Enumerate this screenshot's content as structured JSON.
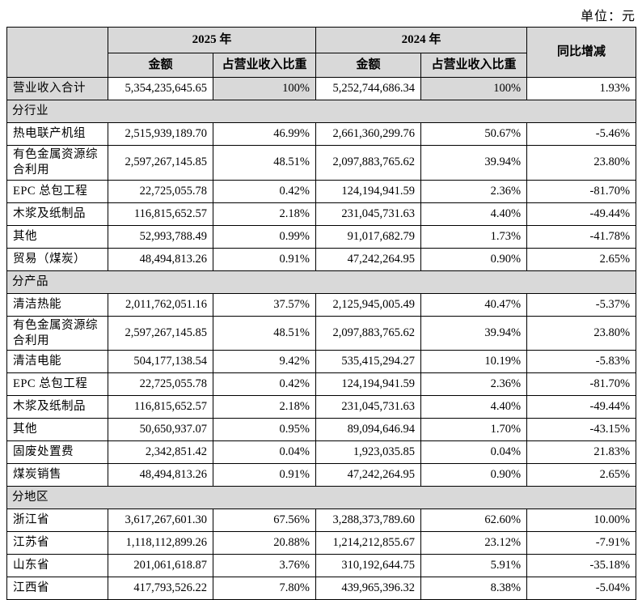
{
  "unit_label": "单位：元",
  "colors": {
    "header_bg": "#d9d9d9",
    "border": "#000000"
  },
  "table": {
    "header": {
      "year_2025": "2025 年",
      "year_2024": "2024 年",
      "yoy": "同比增减",
      "amount": "金额",
      "pct_of_revenue": "占营业收入比重"
    },
    "rows": [
      {
        "type": "total",
        "label": "营业收入合计",
        "a2025": "5,354,235,645.65",
        "p2025": "100%",
        "a2024": "5,252,744,686.34",
        "p2024": "100%",
        "yoy": "1.93%"
      },
      {
        "type": "section",
        "label": "分行业"
      },
      {
        "type": "data",
        "label": "热电联产机组",
        "a2025": "2,515,939,189.70",
        "p2025": "46.99%",
        "a2024": "2,661,360,299.76",
        "p2024": "50.67%",
        "yoy": "-5.46%"
      },
      {
        "type": "data",
        "label": "有色金属资源综合利用",
        "a2025": "2,597,267,145.85",
        "p2025": "48.51%",
        "a2024": "2,097,883,765.62",
        "p2024": "39.94%",
        "yoy": "23.80%"
      },
      {
        "type": "data",
        "label": "EPC 总包工程",
        "a2025": "22,725,055.78",
        "p2025": "0.42%",
        "a2024": "124,194,941.59",
        "p2024": "2.36%",
        "yoy": "-81.70%"
      },
      {
        "type": "data",
        "label": "木浆及纸制品",
        "a2025": "116,815,652.57",
        "p2025": "2.18%",
        "a2024": "231,045,731.63",
        "p2024": "4.40%",
        "yoy": "-49.44%"
      },
      {
        "type": "data",
        "label": "其他",
        "a2025": "52,993,788.49",
        "p2025": "0.99%",
        "a2024": "91,017,682.79",
        "p2024": "1.73%",
        "yoy": "-41.78%"
      },
      {
        "type": "data",
        "label": "贸易（煤炭）",
        "a2025": "48,494,813.26",
        "p2025": "0.91%",
        "a2024": "47,242,264.95",
        "p2024": "0.90%",
        "yoy": "2.65%"
      },
      {
        "type": "section",
        "label": "分产品"
      },
      {
        "type": "data",
        "label": "清洁热能",
        "a2025": "2,011,762,051.16",
        "p2025": "37.57%",
        "a2024": "2,125,945,005.49",
        "p2024": "40.47%",
        "yoy": "-5.37%"
      },
      {
        "type": "data",
        "label": "有色金属资源综合利用",
        "a2025": "2,597,267,145.85",
        "p2025": "48.51%",
        "a2024": "2,097,883,765.62",
        "p2024": "39.94%",
        "yoy": "23.80%"
      },
      {
        "type": "data",
        "label": "清洁电能",
        "a2025": "504,177,138.54",
        "p2025": "9.42%",
        "a2024": "535,415,294.27",
        "p2024": "10.19%",
        "yoy": "-5.83%"
      },
      {
        "type": "data",
        "label": "EPC 总包工程",
        "a2025": "22,725,055.78",
        "p2025": "0.42%",
        "a2024": "124,194,941.59",
        "p2024": "2.36%",
        "yoy": "-81.70%"
      },
      {
        "type": "data",
        "label": "木浆及纸制品",
        "a2025": "116,815,652.57",
        "p2025": "2.18%",
        "a2024": "231,045,731.63",
        "p2024": "4.40%",
        "yoy": "-49.44%"
      },
      {
        "type": "data",
        "label": "其他",
        "a2025": "50,650,937.07",
        "p2025": "0.95%",
        "a2024": "89,094,646.94",
        "p2024": "1.70%",
        "yoy": "-43.15%"
      },
      {
        "type": "data",
        "label": "固废处置费",
        "a2025": "2,342,851.42",
        "p2025": "0.04%",
        "a2024": "1,923,035.85",
        "p2024": "0.04%",
        "yoy": "21.83%"
      },
      {
        "type": "data",
        "label": "煤炭销售",
        "a2025": "48,494,813.26",
        "p2025": "0.91%",
        "a2024": "47,242,264.95",
        "p2024": "0.90%",
        "yoy": "2.65%"
      },
      {
        "type": "section",
        "label": "分地区"
      },
      {
        "type": "data",
        "label": "浙江省",
        "a2025": "3,617,267,601.30",
        "p2025": "67.56%",
        "a2024": "3,288,373,789.60",
        "p2024": "62.60%",
        "yoy": "10.00%"
      },
      {
        "type": "data",
        "label": "江苏省",
        "a2025": "1,118,112,899.26",
        "p2025": "20.88%",
        "a2024": "1,214,212,855.67",
        "p2024": "23.12%",
        "yoy": "-7.91%"
      },
      {
        "type": "data",
        "label": "山东省",
        "a2025": "201,061,618.87",
        "p2025": "3.76%",
        "a2024": "310,192,644.75",
        "p2024": "5.91%",
        "yoy": "-35.18%"
      },
      {
        "type": "data",
        "label": "江西省",
        "a2025": "417,793,526.22",
        "p2025": "7.80%",
        "a2024": "439,965,396.32",
        "p2024": "8.38%",
        "yoy": "-5.04%"
      }
    ]
  }
}
